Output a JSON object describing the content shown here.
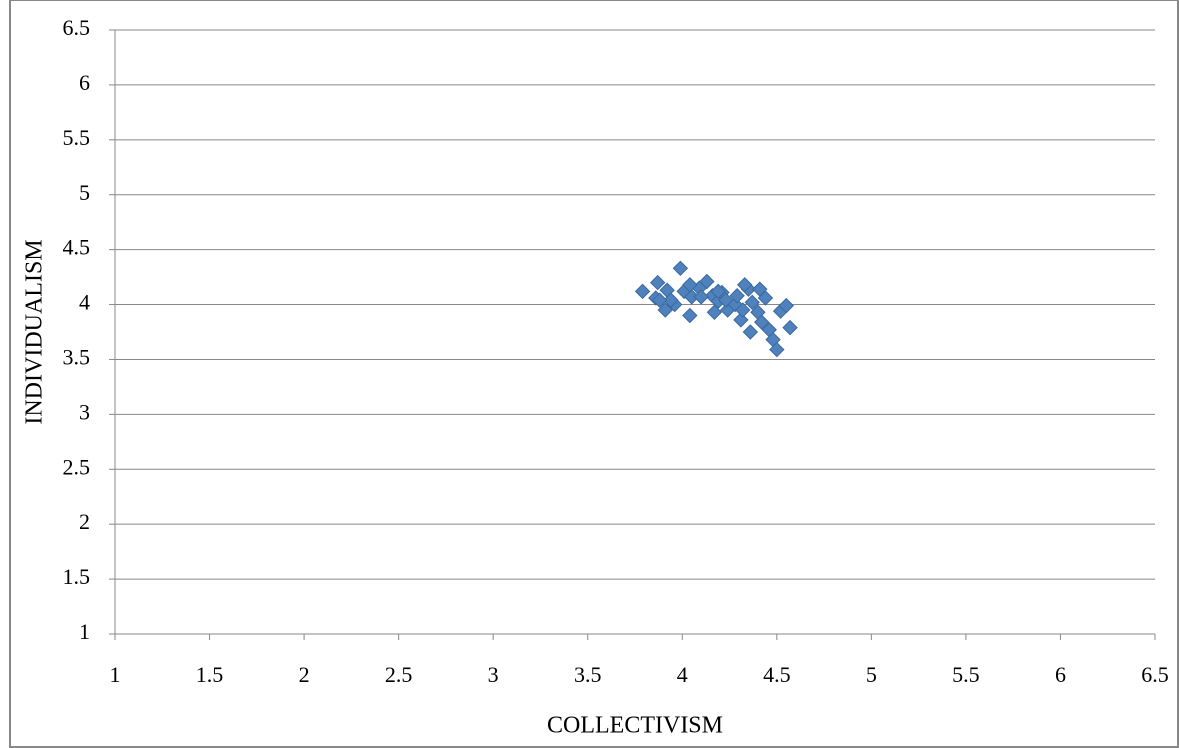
{
  "chart_data": {
    "type": "scatter",
    "x_label": "COLLECTIVISM",
    "y_label": "INDIVIDUALISM",
    "xlim": [
      1,
      6.5
    ],
    "ylim": [
      1,
      6.5
    ],
    "xticks": [
      1,
      1.5,
      2,
      2.5,
      3,
      3.5,
      4,
      4.5,
      5,
      5.5,
      6,
      6.5
    ],
    "yticks": [
      1,
      1.5,
      2,
      2.5,
      3,
      3.5,
      4,
      4.5,
      5,
      5.5,
      6,
      6.5
    ],
    "grid": true,
    "color": "#4f81bd",
    "x": [
      3.79,
      3.87,
      3.86,
      3.92,
      3.91,
      3.96,
      3.99,
      4.01,
      4.04,
      4.05,
      4.09,
      4.13,
      4.16,
      4.19,
      4.17,
      4.21,
      4.24,
      4.28,
      4.29,
      4.31,
      4.35,
      4.37,
      4.36,
      4.4,
      4.44,
      4.42,
      4.46,
      4.48,
      4.5,
      4.52,
      4.55,
      4.57,
      4.33,
      4.23,
      4.1,
      3.94,
      4.04,
      4.19,
      4.32,
      4.41,
      3.88
    ],
    "values": [
      4.12,
      4.2,
      4.06,
      4.13,
      3.95,
      4.0,
      4.33,
      4.12,
      3.9,
      4.07,
      4.15,
      4.21,
      4.08,
      4.03,
      3.93,
      4.11,
      3.95,
      4.0,
      4.08,
      3.86,
      4.14,
      4.02,
      3.75,
      3.93,
      4.06,
      3.84,
      3.77,
      3.68,
      3.59,
      3.94,
      3.99,
      3.79,
      4.18,
      4.04,
      4.07,
      4.04,
      4.18,
      4.12,
      3.95,
      4.14,
      4.04
    ]
  }
}
